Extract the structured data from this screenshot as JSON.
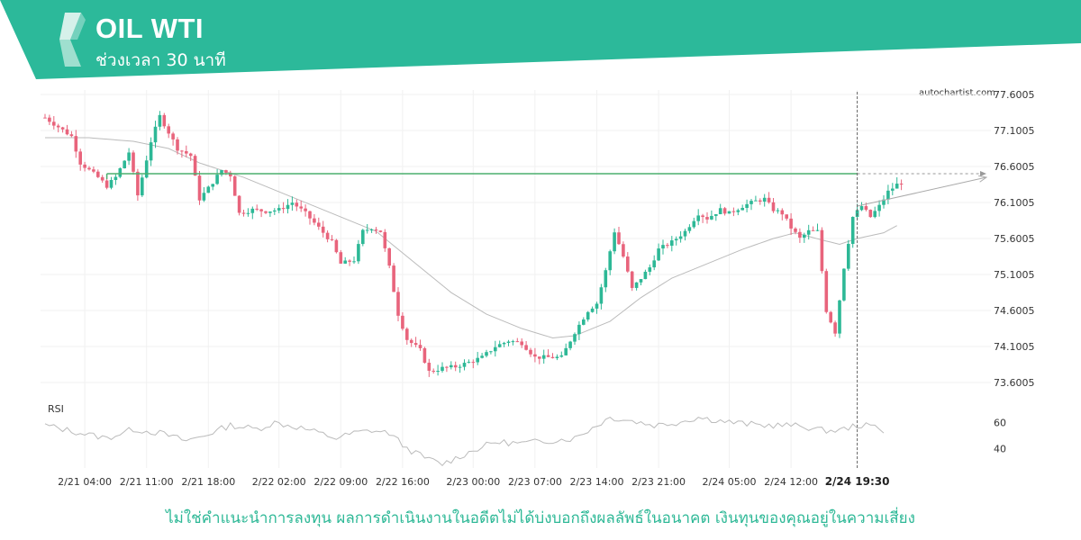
{
  "header": {
    "title": "OIL WTI",
    "subtitle": "ช่วงเวลา 30 นาที",
    "brand_color": "#2cb99a",
    "logo_icon": "autochartist-logo-icon"
  },
  "watermark": "autochartist.com",
  "disclaimer": "ไม่ใช่คำแนะนำการลงทุน ผลการดำเนินงานในอดีตไม่ได้บ่งบอกถึงผลลัพธ์ในอนาคต เงินทุนของคุณอยู่ในความเสี่ยง",
  "chart_data": {
    "type": "candlestick",
    "y_ticks": [
      "77.6005",
      "77.1005",
      "76.6005",
      "76.1005",
      "75.6005",
      "75.1005",
      "74.6005",
      "74.1005",
      "73.6005"
    ],
    "ylim": [
      73.6005,
      77.6005
    ],
    "x_ticks": [
      "2/21 04:00",
      "2/21 11:00",
      "2/21 18:00",
      "2/22 02:00",
      "2/22 09:00",
      "2/22 16:00",
      "2/23 00:00",
      "2/23 07:00",
      "2/23 14:00",
      "2/23 21:00",
      "2/24 05:00",
      "2/24 12:00",
      "2/24 19:30"
    ],
    "x_tick_bar_index": [
      9,
      23,
      37,
      53,
      67,
      81,
      97,
      111,
      125,
      139,
      155,
      169,
      184
    ],
    "highlight_tick": "2/24 19:30",
    "bar_count": 195,
    "current_bar_index": 184,
    "colors": {
      "up": "#2db896",
      "down": "#e8647c",
      "level": "#4caf6e",
      "ma": "#bbbbbb",
      "rsi": "#bbbbbb"
    },
    "resistance_level": 76.5,
    "resistance_start_index": 14,
    "price_path": [
      [
        0,
        77.28
      ],
      [
        6,
        77.02
      ],
      [
        8,
        76.65
      ],
      [
        12,
        76.45
      ],
      [
        14,
        76.33
      ],
      [
        16,
        76.45
      ],
      [
        19,
        76.8
      ],
      [
        21,
        76.2
      ],
      [
        24,
        76.95
      ],
      [
        26,
        77.3
      ],
      [
        30,
        76.85
      ],
      [
        33,
        76.75
      ],
      [
        35,
        76.15
      ],
      [
        37,
        76.3
      ],
      [
        40,
        76.55
      ],
      [
        42,
        76.48
      ],
      [
        44,
        75.95
      ],
      [
        47,
        76.0
      ],
      [
        50,
        75.98
      ],
      [
        53,
        76.0
      ],
      [
        56,
        76.1
      ],
      [
        59,
        75.95
      ],
      [
        62,
        75.75
      ],
      [
        65,
        75.55
      ],
      [
        67,
        75.25
      ],
      [
        70,
        75.3
      ],
      [
        72,
        75.7
      ],
      [
        74,
        75.75
      ],
      [
        76,
        75.7
      ],
      [
        78,
        75.2
      ],
      [
        80,
        74.55
      ],
      [
        82,
        74.2
      ],
      [
        85,
        74.05
      ],
      [
        87,
        73.75
      ],
      [
        90,
        73.8
      ],
      [
        93,
        73.82
      ],
      [
        96,
        73.88
      ],
      [
        99,
        73.95
      ],
      [
        102,
        74.1
      ],
      [
        105,
        74.18
      ],
      [
        108,
        74.15
      ],
      [
        111,
        73.95
      ],
      [
        114,
        73.95
      ],
      [
        117,
        73.95
      ],
      [
        120,
        74.3
      ],
      [
        123,
        74.6
      ],
      [
        125,
        74.7
      ],
      [
        127,
        75.15
      ],
      [
        129,
        75.7
      ],
      [
        131,
        75.35
      ],
      [
        133,
        74.9
      ],
      [
        135,
        75.05
      ],
      [
        137,
        75.2
      ],
      [
        139,
        75.45
      ],
      [
        142,
        75.55
      ],
      [
        145,
        75.7
      ],
      [
        148,
        75.95
      ],
      [
        150,
        75.88
      ],
      [
        153,
        76.0
      ],
      [
        155,
        75.95
      ],
      [
        158,
        76.05
      ],
      [
        161,
        76.12
      ],
      [
        163,
        76.15
      ],
      [
        165,
        76.0
      ],
      [
        167,
        75.95
      ],
      [
        169,
        75.75
      ],
      [
        171,
        75.6
      ],
      [
        173,
        75.7
      ],
      [
        175,
        75.7
      ],
      [
        177,
        74.6
      ],
      [
        179,
        74.3
      ],
      [
        181,
        75.2
      ],
      [
        183,
        75.9
      ],
      [
        185,
        76.05
      ],
      [
        187,
        75.9
      ],
      [
        189,
        76.05
      ],
      [
        191,
        76.25
      ],
      [
        193,
        76.35
      ],
      [
        195,
        76.42
      ]
    ],
    "ma_path": [
      [
        0,
        77.0
      ],
      [
        10,
        77.0
      ],
      [
        20,
        76.95
      ],
      [
        28,
        76.85
      ],
      [
        35,
        76.65
      ],
      [
        45,
        76.45
      ],
      [
        55,
        76.2
      ],
      [
        65,
        75.95
      ],
      [
        75,
        75.7
      ],
      [
        83,
        75.3
      ],
      [
        92,
        74.85
      ],
      [
        100,
        74.55
      ],
      [
        108,
        74.35
      ],
      [
        115,
        74.22
      ],
      [
        120,
        74.25
      ],
      [
        128,
        74.45
      ],
      [
        135,
        74.78
      ],
      [
        142,
        75.05
      ],
      [
        150,
        75.25
      ],
      [
        158,
        75.45
      ],
      [
        165,
        75.6
      ],
      [
        170,
        75.68
      ],
      [
        176,
        75.58
      ],
      [
        180,
        75.52
      ],
      [
        184,
        75.6
      ],
      [
        190,
        75.68
      ],
      [
        193,
        75.78
      ]
    ],
    "forecast": {
      "from": [
        184,
        76.05
      ],
      "to": [
        198,
        76.45
      ]
    },
    "rsi": {
      "label": "RSI",
      "y_ticks": [
        "60",
        "40"
      ],
      "ylim": [
        25,
        75
      ],
      "path": [
        [
          0,
          58
        ],
        [
          8,
          52
        ],
        [
          14,
          48
        ],
        [
          20,
          55
        ],
        [
          26,
          52
        ],
        [
          32,
          46
        ],
        [
          36,
          50
        ],
        [
          42,
          58
        ],
        [
          48,
          55
        ],
        [
          52,
          60
        ],
        [
          58,
          56
        ],
        [
          62,
          52
        ],
        [
          66,
          48
        ],
        [
          70,
          52
        ],
        [
          74,
          54
        ],
        [
          78,
          52
        ],
        [
          82,
          40
        ],
        [
          86,
          33
        ],
        [
          90,
          28
        ],
        [
          94,
          34
        ],
        [
          98,
          40
        ],
        [
          102,
          45
        ],
        [
          108,
          44
        ],
        [
          114,
          46
        ],
        [
          120,
          48
        ],
        [
          124,
          56
        ],
        [
          128,
          64
        ],
        [
          132,
          62
        ],
        [
          138,
          58
        ],
        [
          143,
          60
        ],
        [
          148,
          64
        ],
        [
          152,
          62
        ],
        [
          156,
          60
        ],
        [
          162,
          58
        ],
        [
          168,
          58
        ],
        [
          172,
          57
        ],
        [
          176,
          54
        ],
        [
          180,
          54
        ],
        [
          184,
          58
        ],
        [
          188,
          57
        ],
        [
          190,
          54
        ]
      ]
    }
  }
}
